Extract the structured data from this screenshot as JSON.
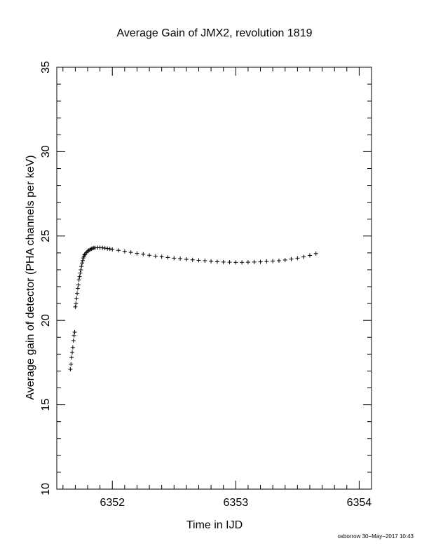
{
  "chart_data": {
    "type": "scatter",
    "title": "Average Gain of JMX2, revolution 1819",
    "xlabel": "Time in IJD",
    "ylabel": "Average gain of detector (PHA channels per keV)",
    "xlim": [
      6351.55,
      6354.1
    ],
    "ylim": [
      10,
      35
    ],
    "xticks": [
      6352,
      6353,
      6354
    ],
    "xtick_labels": [
      "6352",
      "6353",
      "6354"
    ],
    "yticks": [
      10,
      15,
      20,
      25,
      30,
      35
    ],
    "ytick_labels": [
      "10",
      "15",
      "20",
      "25",
      "30",
      "35"
    ],
    "grid": false,
    "marker": "plus",
    "series": [
      {
        "points": [
          [
            6351.66,
            17.1
          ],
          [
            6351.665,
            17.4
          ],
          [
            6351.67,
            17.8
          ],
          [
            6351.675,
            18.1
          ],
          [
            6351.68,
            18.4
          ],
          [
            6351.685,
            18.8
          ],
          [
            6351.69,
            19.1
          ],
          [
            6351.695,
            19.3
          ],
          [
            6351.7,
            20.8
          ],
          [
            6351.705,
            21.0
          ],
          [
            6351.71,
            21.3
          ],
          [
            6351.715,
            21.6
          ],
          [
            6351.72,
            21.9
          ],
          [
            6351.725,
            22.1
          ],
          [
            6351.73,
            22.4
          ],
          [
            6351.735,
            22.6
          ],
          [
            6351.74,
            22.8
          ],
          [
            6351.745,
            23.0
          ],
          [
            6351.75,
            23.2
          ],
          [
            6351.755,
            23.4
          ],
          [
            6351.76,
            23.55
          ],
          [
            6351.765,
            23.7
          ],
          [
            6351.77,
            23.8
          ],
          [
            6351.775,
            23.88
          ],
          [
            6351.78,
            23.94
          ],
          [
            6351.79,
            24.02
          ],
          [
            6351.8,
            24.1
          ],
          [
            6351.81,
            24.15
          ],
          [
            6351.82,
            24.2
          ],
          [
            6351.83,
            24.24
          ],
          [
            6351.84,
            24.27
          ],
          [
            6351.85,
            24.29
          ],
          [
            6351.86,
            24.3
          ],
          [
            6351.88,
            24.31
          ],
          [
            6351.9,
            24.31
          ],
          [
            6351.92,
            24.3
          ],
          [
            6351.94,
            24.28
          ],
          [
            6351.96,
            24.26
          ],
          [
            6351.98,
            24.24
          ],
          [
            6352.0,
            24.21
          ],
          [
            6352.05,
            24.15
          ],
          [
            6352.1,
            24.09
          ],
          [
            6352.15,
            24.03
          ],
          [
            6352.2,
            23.97
          ],
          [
            6352.25,
            23.92
          ],
          [
            6352.3,
            23.86
          ],
          [
            6352.35,
            23.81
          ],
          [
            6352.4,
            23.77
          ],
          [
            6352.45,
            23.73
          ],
          [
            6352.5,
            23.69
          ],
          [
            6352.55,
            23.66
          ],
          [
            6352.6,
            23.62
          ],
          [
            6352.65,
            23.59
          ],
          [
            6352.7,
            23.56
          ],
          [
            6352.75,
            23.54
          ],
          [
            6352.8,
            23.5
          ],
          [
            6352.85,
            23.48
          ],
          [
            6352.9,
            23.46
          ],
          [
            6352.95,
            23.45
          ],
          [
            6353.0,
            23.44
          ],
          [
            6353.05,
            23.44
          ],
          [
            6353.1,
            23.45
          ],
          [
            6353.15,
            23.46
          ],
          [
            6353.2,
            23.47
          ],
          [
            6353.25,
            23.49
          ],
          [
            6353.3,
            23.51
          ],
          [
            6353.35,
            23.54
          ],
          [
            6353.4,
            23.58
          ],
          [
            6353.45,
            23.63
          ],
          [
            6353.5,
            23.69
          ],
          [
            6353.55,
            23.76
          ],
          [
            6353.6,
            23.85
          ],
          [
            6353.65,
            23.96
          ]
        ]
      }
    ]
  },
  "footer": "oxborrow 30−May−2017 10:43"
}
